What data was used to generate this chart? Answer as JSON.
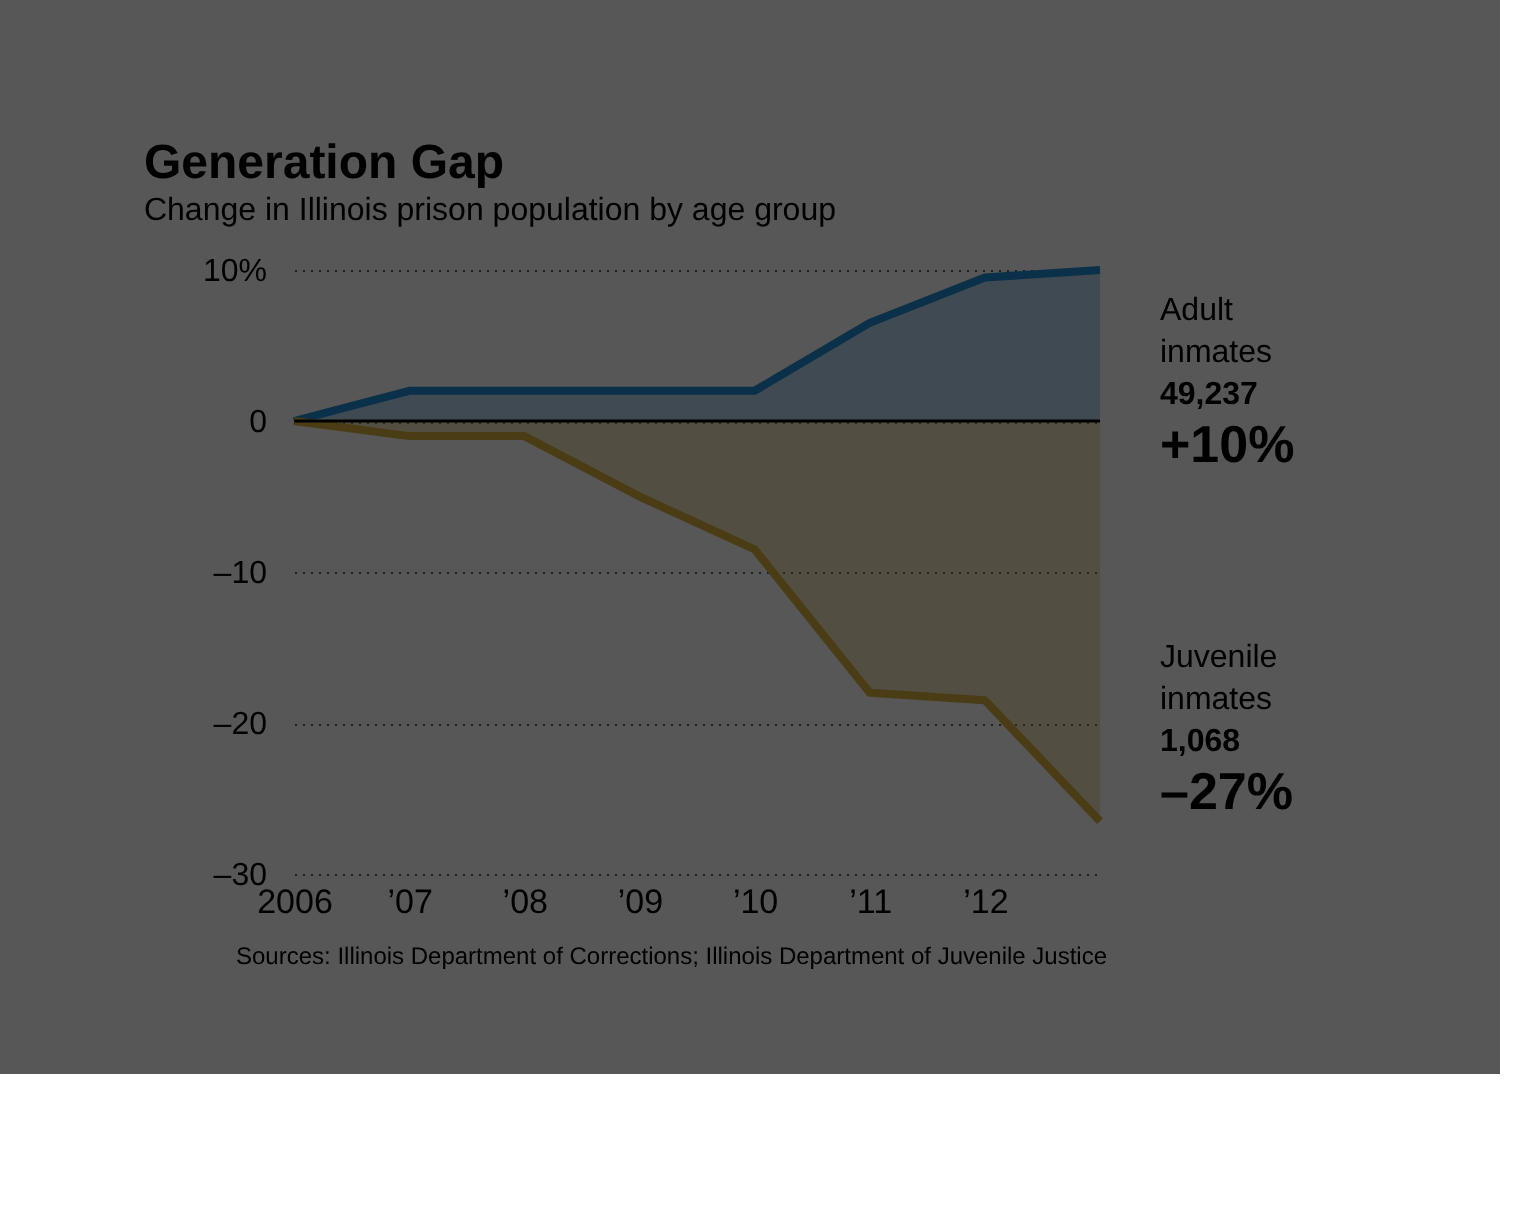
{
  "chart_data": {
    "type": "area",
    "title": "Generation Gap",
    "subtitle": "Change in Illinois prison population by age group",
    "x": [
      2006,
      2007,
      2008,
      2009,
      2010,
      2011,
      2012,
      2013
    ],
    "series": [
      {
        "name": "Adult inmates",
        "color": "#0b3049",
        "values": [
          0,
          2,
          2,
          2,
          2,
          6.5,
          9.5,
          10
        ]
      },
      {
        "name": "Juvenile inmates",
        "color": "#4a3c14",
        "values": [
          0,
          -1,
          -1,
          -5,
          -8.5,
          -18,
          -18.5,
          -26.5
        ]
      }
    ],
    "xlim": [
      2006,
      2013
    ],
    "xticks": [
      {
        "value": 2006,
        "label": "2006"
      },
      {
        "value": 2007,
        "label": "’07"
      },
      {
        "value": 2008,
        "label": "’08"
      },
      {
        "value": 2009,
        "label": "’09"
      },
      {
        "value": 2010,
        "label": "’10"
      },
      {
        "value": 2011,
        "label": "’11"
      },
      {
        "value": 2012,
        "label": "’12"
      }
    ],
    "ylim": [
      -30,
      10
    ],
    "yticks": [
      {
        "value": 10,
        "label": "10%"
      },
      0,
      {
        "value": -10,
        "label": "–10"
      },
      {
        "value": -20,
        "label": "–20"
      },
      {
        "value": -30,
        "label": "–30"
      }
    ],
    "grid": "y",
    "line_style": "solid",
    "marker": "none",
    "ref_lines": [
      {
        "axis": "y",
        "value": 0,
        "color": "#000000"
      }
    ],
    "annotations": [
      "49,237",
      "+10%",
      "1,068",
      "–27%",
      "Sources: Illinois Department of Corrections; Illinois Department of Juvenile Justice"
    ]
  }
}
